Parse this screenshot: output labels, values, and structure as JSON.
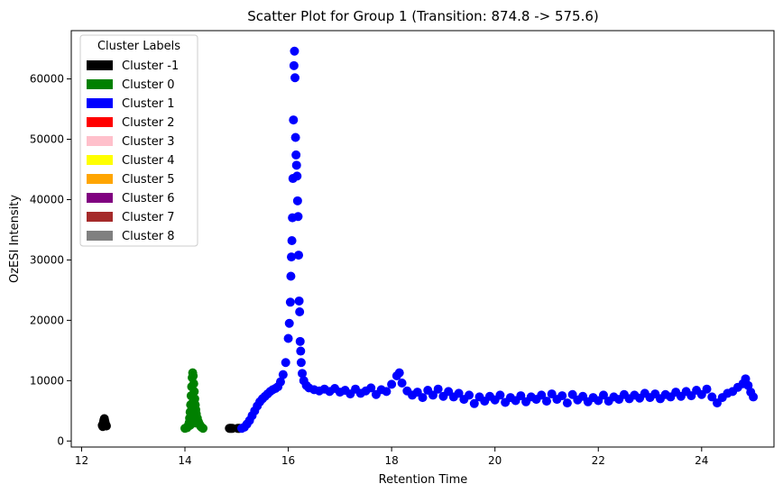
{
  "chart_data": {
    "type": "scatter",
    "title": "Scatter Plot for Group 1 (Transition: 874.8 -> 575.6)",
    "xlabel": "Retention Time",
    "ylabel": "OzESI Intensity",
    "xlim": [
      11.8,
      25.4
    ],
    "ylim": [
      -1000,
      68000
    ],
    "xticks": [
      12,
      14,
      16,
      18,
      20,
      22,
      24
    ],
    "yticks": [
      0,
      10000,
      20000,
      30000,
      40000,
      50000,
      60000
    ],
    "grid": false,
    "legend": {
      "title": "Cluster Labels",
      "placement": "top-left",
      "entries": [
        {
          "label": "Cluster -1",
          "color": "#000000"
        },
        {
          "label": "Cluster 0",
          "color": "#008000"
        },
        {
          "label": "Cluster 1",
          "color": "#0000ff"
        },
        {
          "label": "Cluster 2",
          "color": "#ff0000"
        },
        {
          "label": "Cluster 3",
          "color": "#ffc0cb"
        },
        {
          "label": "Cluster 4",
          "color": "#ffff00"
        },
        {
          "label": "Cluster 5",
          "color": "#ffa500"
        },
        {
          "label": "Cluster 6",
          "color": "#800080"
        },
        {
          "label": "Cluster 7",
          "color": "#a52a2a"
        },
        {
          "label": "Cluster 8",
          "color": "#808080"
        }
      ]
    },
    "series": [
      {
        "cluster": "-1",
        "color": "#000000",
        "points": [
          [
            12.4,
            2600
          ],
          [
            12.42,
            3000
          ],
          [
            12.43,
            3400
          ],
          [
            12.44,
            3700
          ],
          [
            12.45,
            3300
          ],
          [
            12.46,
            2900
          ],
          [
            12.47,
            2600
          ],
          [
            12.48,
            2500
          ],
          [
            12.41,
            2400
          ],
          [
            14.86,
            2100
          ],
          [
            14.88,
            2100
          ],
          [
            14.9,
            2100
          ],
          [
            14.92,
            2100
          ],
          [
            15.02,
            2100
          ],
          [
            15.04,
            2100
          ],
          [
            15.06,
            2100
          ]
        ]
      },
      {
        "cluster": "0",
        "color": "#008000",
        "points": [
          [
            14.0,
            2100
          ],
          [
            14.04,
            2200
          ],
          [
            14.06,
            2500
          ],
          [
            14.08,
            3000
          ],
          [
            14.09,
            3800
          ],
          [
            14.1,
            4800
          ],
          [
            14.11,
            6000
          ],
          [
            14.12,
            7500
          ],
          [
            14.13,
            9000
          ],
          [
            14.14,
            10500
          ],
          [
            14.15,
            11300
          ],
          [
            14.16,
            10800
          ],
          [
            14.17,
            9500
          ],
          [
            14.18,
            8200
          ],
          [
            14.19,
            7000
          ],
          [
            14.2,
            6000
          ],
          [
            14.21,
            5200
          ],
          [
            14.22,
            4500
          ],
          [
            14.24,
            3800
          ],
          [
            14.26,
            3200
          ],
          [
            14.28,
            2800
          ],
          [
            14.3,
            2500
          ],
          [
            14.32,
            2300
          ],
          [
            14.35,
            2100
          ],
          [
            14.12,
            3500
          ],
          [
            14.14,
            5500
          ],
          [
            14.16,
            6500
          ],
          [
            14.18,
            4000
          ],
          [
            14.2,
            3000
          ],
          [
            14.1,
            2600
          ]
        ]
      },
      {
        "cluster": "1",
        "color": "#0000ff",
        "points": [
          [
            15.1,
            2100
          ],
          [
            15.15,
            2300
          ],
          [
            15.2,
            2800
          ],
          [
            15.25,
            3400
          ],
          [
            15.3,
            4200
          ],
          [
            15.35,
            5000
          ],
          [
            15.4,
            5800
          ],
          [
            15.45,
            6500
          ],
          [
            15.5,
            7000
          ],
          [
            15.55,
            7400
          ],
          [
            15.6,
            7800
          ],
          [
            15.65,
            8200
          ],
          [
            15.7,
            8500
          ],
          [
            15.75,
            8700
          ],
          [
            15.8,
            9000
          ],
          [
            15.85,
            9800
          ],
          [
            15.9,
            11000
          ],
          [
            15.95,
            13000
          ],
          [
            16.0,
            17000
          ],
          [
            16.02,
            19500
          ],
          [
            16.04,
            23000
          ],
          [
            16.05,
            27300
          ],
          [
            16.06,
            30500
          ],
          [
            16.07,
            33200
          ],
          [
            16.08,
            37000
          ],
          [
            16.09,
            43500
          ],
          [
            16.1,
            53200
          ],
          [
            16.11,
            62200
          ],
          [
            16.12,
            64600
          ],
          [
            16.13,
            60200
          ],
          [
            16.14,
            50300
          ],
          [
            16.15,
            47400
          ],
          [
            16.16,
            45700
          ],
          [
            16.17,
            43900
          ],
          [
            16.18,
            39800
          ],
          [
            16.19,
            37200
          ],
          [
            16.2,
            30800
          ],
          [
            16.21,
            23200
          ],
          [
            16.22,
            21400
          ],
          [
            16.23,
            16500
          ],
          [
            16.24,
            14900
          ],
          [
            16.25,
            13000
          ],
          [
            16.27,
            11200
          ],
          [
            16.3,
            10000
          ],
          [
            16.35,
            9200
          ],
          [
            16.4,
            8800
          ],
          [
            16.5,
            8500
          ],
          [
            16.6,
            8300
          ],
          [
            16.7,
            8600
          ],
          [
            16.8,
            8200
          ],
          [
            16.9,
            8700
          ],
          [
            17.0,
            8100
          ],
          [
            17.1,
            8400
          ],
          [
            17.2,
            7800
          ],
          [
            17.3,
            8600
          ],
          [
            17.4,
            7900
          ],
          [
            17.5,
            8300
          ],
          [
            17.6,
            8800
          ],
          [
            17.7,
            7700
          ],
          [
            17.8,
            8500
          ],
          [
            17.9,
            8200
          ],
          [
            18.0,
            9400
          ],
          [
            18.1,
            10800
          ],
          [
            18.15,
            11300
          ],
          [
            18.2,
            9600
          ],
          [
            18.3,
            8300
          ],
          [
            18.4,
            7600
          ],
          [
            18.5,
            8100
          ],
          [
            18.6,
            7200
          ],
          [
            18.7,
            8400
          ],
          [
            18.8,
            7600
          ],
          [
            18.9,
            8600
          ],
          [
            19.0,
            7400
          ],
          [
            19.1,
            8200
          ],
          [
            19.2,
            7300
          ],
          [
            19.3,
            7900
          ],
          [
            19.4,
            6900
          ],
          [
            19.5,
            7600
          ],
          [
            19.6,
            6200
          ],
          [
            19.7,
            7300
          ],
          [
            19.8,
            6600
          ],
          [
            19.9,
            7400
          ],
          [
            20.0,
            6800
          ],
          [
            20.1,
            7600
          ],
          [
            20.2,
            6400
          ],
          [
            20.3,
            7200
          ],
          [
            20.4,
            6700
          ],
          [
            20.5,
            7500
          ],
          [
            20.6,
            6500
          ],
          [
            20.7,
            7300
          ],
          [
            20.8,
            6900
          ],
          [
            20.9,
            7600
          ],
          [
            21.0,
            6600
          ],
          [
            21.1,
            7800
          ],
          [
            21.2,
            6900
          ],
          [
            21.3,
            7500
          ],
          [
            21.4,
            6300
          ],
          [
            21.5,
            7700
          ],
          [
            21.6,
            6800
          ],
          [
            21.7,
            7400
          ],
          [
            21.8,
            6500
          ],
          [
            21.9,
            7200
          ],
          [
            22.0,
            6700
          ],
          [
            22.1,
            7600
          ],
          [
            22.2,
            6600
          ],
          [
            22.3,
            7300
          ],
          [
            22.4,
            6900
          ],
          [
            22.5,
            7700
          ],
          [
            22.6,
            7000
          ],
          [
            22.7,
            7600
          ],
          [
            22.8,
            7100
          ],
          [
            22.9,
            7900
          ],
          [
            23.0,
            7200
          ],
          [
            23.1,
            7800
          ],
          [
            23.2,
            7000
          ],
          [
            23.3,
            7700
          ],
          [
            23.4,
            7300
          ],
          [
            23.5,
            8100
          ],
          [
            23.6,
            7400
          ],
          [
            23.7,
            8200
          ],
          [
            23.8,
            7500
          ],
          [
            23.9,
            8400
          ],
          [
            24.0,
            7700
          ],
          [
            24.1,
            8600
          ],
          [
            24.2,
            7300
          ],
          [
            24.3,
            6300
          ],
          [
            24.4,
            7200
          ],
          [
            24.5,
            7900
          ],
          [
            24.6,
            8200
          ],
          [
            24.7,
            8900
          ],
          [
            24.8,
            9500
          ],
          [
            24.85,
            10300
          ],
          [
            24.9,
            9200
          ],
          [
            24.95,
            8100
          ],
          [
            25.0,
            7300
          ]
        ]
      }
    ]
  }
}
